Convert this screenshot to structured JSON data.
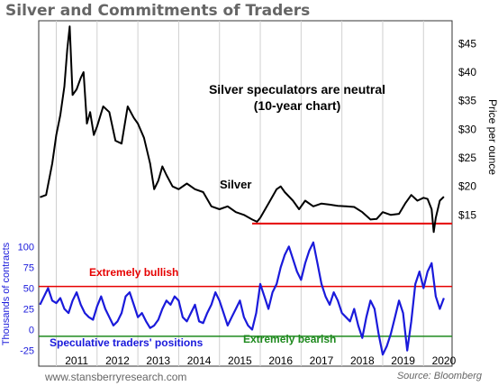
{
  "title": "Silver and Commitments of Traders",
  "footer": {
    "source_left": "www.stansberryresearch.com",
    "source_right": "Source: Bloomberg"
  },
  "colors": {
    "silver": "#000000",
    "positions": "#1a1adb",
    "bullish": "#e60000",
    "bearish": "#1f8a1f",
    "support": "#e60000",
    "grid": "#d0d0d0"
  },
  "chart_data": [
    {
      "type": "line",
      "title": "",
      "annotation": "Silver speculators are neutral\n(10-year chart)",
      "series_label": "Silver",
      "ylabel": "Price per ounce",
      "ylim": [
        10,
        49
      ],
      "yticks": [
        "$15",
        "$20",
        "$25",
        "$30",
        "$35",
        "$40",
        "$45"
      ],
      "support_level": 13.5,
      "x": [
        2010.6,
        2010.75,
        2010.9,
        2011.0,
        2011.1,
        2011.2,
        2011.27,
        2011.33,
        2011.4,
        2011.5,
        2011.6,
        2011.67,
        2011.75,
        2011.83,
        2011.92,
        2012.0,
        2012.15,
        2012.3,
        2012.45,
        2012.6,
        2012.75,
        2012.9,
        2013.0,
        2013.15,
        2013.3,
        2013.4,
        2013.5,
        2013.6,
        2013.7,
        2013.85,
        2014.0,
        2014.2,
        2014.4,
        2014.6,
        2014.8,
        2015.0,
        2015.2,
        2015.4,
        2015.6,
        2015.8,
        2015.92,
        2016.0,
        2016.2,
        2016.4,
        2016.5,
        2016.6,
        2016.8,
        2016.95,
        2017.1,
        2017.3,
        2017.5,
        2017.7,
        2017.9,
        2018.1,
        2018.3,
        2018.5,
        2018.7,
        2018.85,
        2019.0,
        2019.2,
        2019.4,
        2019.55,
        2019.7,
        2019.85,
        2020.0,
        2020.1,
        2020.2,
        2020.25,
        2020.3,
        2020.4,
        2020.5
      ],
      "y": [
        18.1,
        18.5,
        24.0,
        29.0,
        32.5,
        37.5,
        44.0,
        48.0,
        36.0,
        37.0,
        39.0,
        40.0,
        31.0,
        33.0,
        29.0,
        30.5,
        34.0,
        33.0,
        28.0,
        27.5,
        34.0,
        32.0,
        31.0,
        28.5,
        24.0,
        19.5,
        21.0,
        23.5,
        22.0,
        20.0,
        19.5,
        20.5,
        19.5,
        19.0,
        16.5,
        16.0,
        16.5,
        15.5,
        15.0,
        14.2,
        13.8,
        14.5,
        17.0,
        19.5,
        20.0,
        19.0,
        17.5,
        16.0,
        17.5,
        16.5,
        17.0,
        16.8,
        16.6,
        16.5,
        16.4,
        15.5,
        14.2,
        14.3,
        15.5,
        15.0,
        15.2,
        17.0,
        18.5,
        17.5,
        18.0,
        17.8,
        16.0,
        12.0,
        14.5,
        17.5,
        18.2
      ]
    },
    {
      "type": "line",
      "title": "",
      "series_label": "Speculative traders' positions",
      "ylabel": "Thousands of contracts",
      "ylim": [
        -32,
        120
      ],
      "yticks": [
        "-25",
        "0",
        "25",
        "50",
        "75",
        "100"
      ],
      "xticks": [
        "2011",
        "2012",
        "2013",
        "2014",
        "2015",
        "2016",
        "2017",
        "2018",
        "2019",
        "2020"
      ],
      "xlim": [
        2010.57,
        2020.7
      ],
      "thresholds": [
        {
          "label": "Extremely bullish",
          "value": 52
        },
        {
          "label": "Extremely bearish",
          "value": -8
        }
      ],
      "x": [
        2010.6,
        2010.7,
        2010.8,
        2010.9,
        2011.0,
        2011.1,
        2011.2,
        2011.3,
        2011.4,
        2011.5,
        2011.6,
        2011.7,
        2011.8,
        2011.9,
        2012.0,
        2012.1,
        2012.2,
        2012.3,
        2012.4,
        2012.5,
        2012.6,
        2012.7,
        2012.8,
        2012.9,
        2013.0,
        2013.1,
        2013.2,
        2013.3,
        2013.4,
        2013.5,
        2013.6,
        2013.7,
        2013.8,
        2013.9,
        2014.0,
        2014.1,
        2014.2,
        2014.3,
        2014.4,
        2014.5,
        2014.6,
        2014.7,
        2014.8,
        2014.9,
        2015.0,
        2015.1,
        2015.2,
        2015.3,
        2015.4,
        2015.5,
        2015.6,
        2015.7,
        2015.8,
        2015.9,
        2016.0,
        2016.1,
        2016.2,
        2016.3,
        2016.4,
        2016.5,
        2016.6,
        2016.7,
        2016.8,
        2016.9,
        2017.0,
        2017.1,
        2017.2,
        2017.3,
        2017.4,
        2017.5,
        2017.6,
        2017.7,
        2017.8,
        2017.9,
        2018.0,
        2018.1,
        2018.2,
        2018.3,
        2018.4,
        2018.5,
        2018.6,
        2018.7,
        2018.8,
        2018.9,
        2019.0,
        2019.1,
        2019.2,
        2019.3,
        2019.4,
        2019.5,
        2019.6,
        2019.7,
        2019.8,
        2019.9,
        2020.0,
        2020.1,
        2020.2,
        2020.3,
        2020.4,
        2020.5
      ],
      "y": [
        30,
        40,
        50,
        35,
        32,
        38,
        25,
        20,
        35,
        45,
        30,
        20,
        15,
        12,
        28,
        40,
        25,
        15,
        5,
        10,
        20,
        40,
        45,
        30,
        15,
        20,
        10,
        2,
        5,
        12,
        25,
        35,
        30,
        40,
        35,
        15,
        10,
        20,
        30,
        10,
        8,
        20,
        30,
        45,
        35,
        20,
        5,
        15,
        25,
        35,
        15,
        5,
        0,
        20,
        55,
        40,
        25,
        45,
        55,
        75,
        90,
        100,
        85,
        70,
        60,
        80,
        95,
        105,
        80,
        55,
        40,
        30,
        45,
        35,
        20,
        15,
        10,
        25,
        5,
        -10,
        15,
        35,
        25,
        -5,
        -30,
        -20,
        -5,
        15,
        35,
        20,
        -25,
        10,
        55,
        70,
        50,
        70,
        80,
        40,
        25,
        38
      ]
    }
  ]
}
